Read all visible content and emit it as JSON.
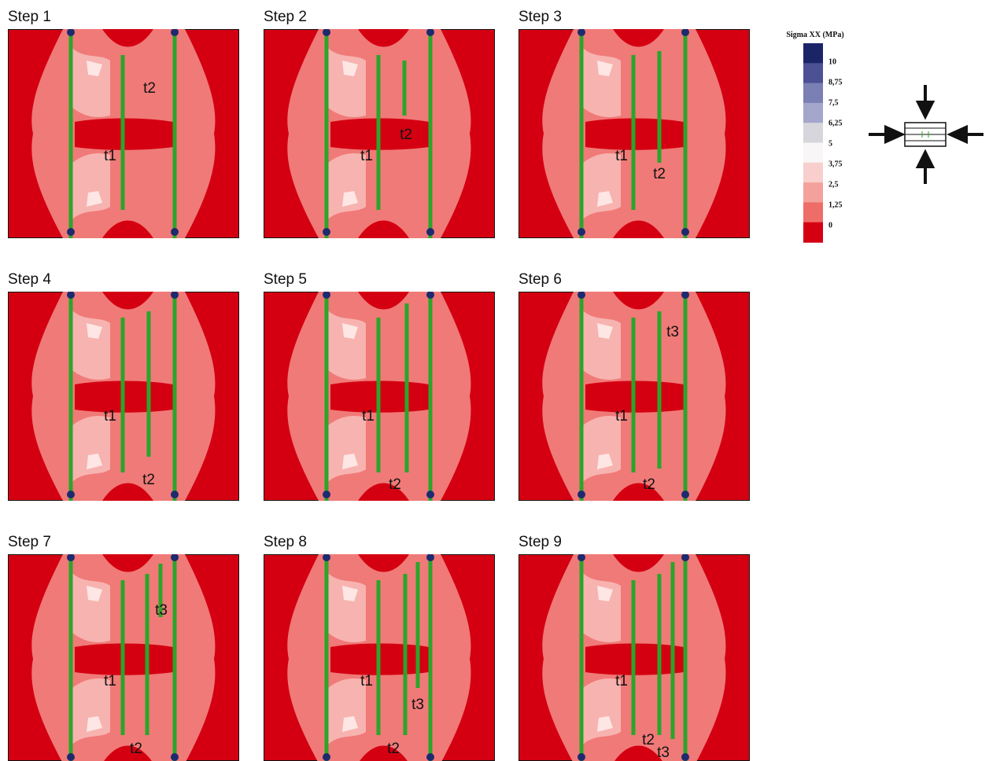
{
  "panels": [
    {
      "title": "Step 1",
      "labels": [
        "t1",
        "t2"
      ]
    },
    {
      "title": "Step 2",
      "labels": [
        "t1",
        "t2"
      ]
    },
    {
      "title": "Step 3",
      "labels": [
        "t1",
        "t2"
      ]
    },
    {
      "title": "Step 4",
      "labels": [
        "t1",
        "t2"
      ]
    },
    {
      "title": "Step 5",
      "labels": [
        "t1",
        "t2"
      ]
    },
    {
      "title": "Step 6",
      "labels": [
        "t3",
        "t1",
        "t2"
      ]
    },
    {
      "title": "Step 7",
      "labels": [
        "t3",
        "t1",
        "t2"
      ]
    },
    {
      "title": "Step 8",
      "labels": [
        "t1",
        "t3",
        "t2"
      ]
    },
    {
      "title": "Step 9",
      "labels": [
        "t1",
        "t2",
        "t3"
      ]
    }
  ],
  "legend": {
    "title": "Sigma XX (MPa)",
    "labels": [
      "10",
      "8,75",
      "7,5",
      "6,25",
      "5",
      "3,75",
      "2,5",
      "1,25",
      "0"
    ]
  }
}
